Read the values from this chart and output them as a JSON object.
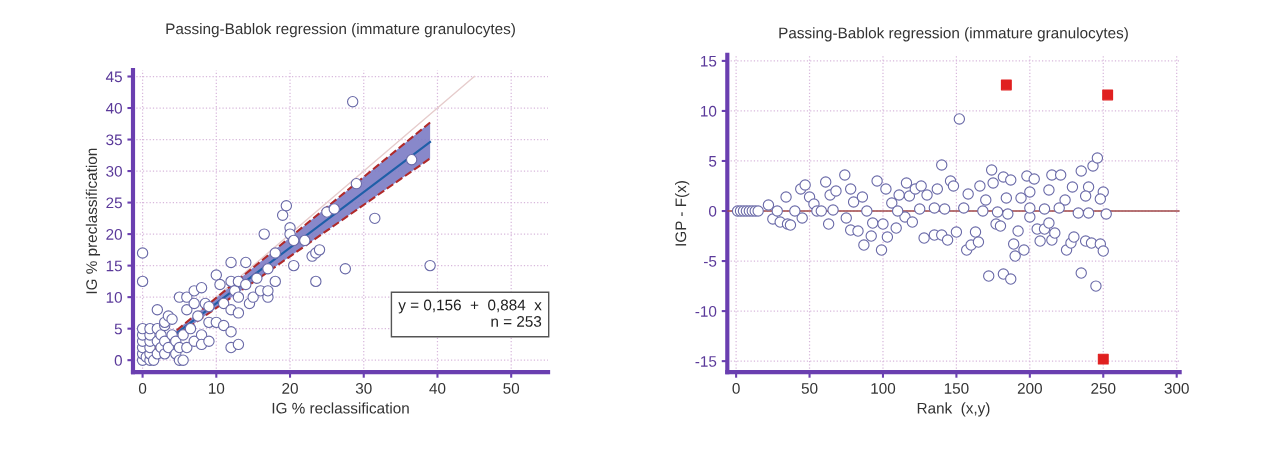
{
  "chart_data": [
    {
      "type": "scatter",
      "title": "Passing-Bablok regression (immature granulocytes)",
      "xlabel": "IG % reclassification",
      "ylabel": "IG % preclassification",
      "xlim": [
        -1.3,
        55
      ],
      "ylim": [
        -1.9,
        46
      ],
      "xticks": [
        0,
        10,
        20,
        30,
        40,
        50
      ],
      "yticks": [
        0,
        5,
        10,
        15,
        20,
        25,
        30,
        35,
        40,
        45
      ],
      "grid": true,
      "series": [
        {
          "marker": "circle",
          "color": "#6a6aa8",
          "x": [
            0,
            0,
            0,
            0,
            0,
            0,
            0,
            0,
            0.5,
            1,
            1,
            1,
            1,
            1,
            1,
            1.5,
            2,
            2,
            2,
            2,
            2.5,
            2.5,
            3,
            3,
            3,
            3,
            3.5,
            3.5,
            4,
            4,
            4.5,
            4.5,
            5,
            5,
            5,
            5.5,
            5.5,
            6,
            6,
            6,
            6.5,
            7,
            7,
            7,
            7.5,
            8,
            8,
            8,
            8.5,
            9,
            9,
            9,
            10,
            10,
            10.5,
            11,
            11,
            12,
            12,
            12,
            12,
            12,
            12.5,
            13,
            13,
            13,
            13,
            14,
            14,
            14.5,
            15,
            15.5,
            16,
            17,
            17,
            17,
            16.5,
            18,
            18,
            19,
            19.5,
            20,
            20,
            20.5,
            20.5,
            22,
            23,
            23.5,
            24,
            23.5,
            25,
            26,
            27.5,
            29,
            28.5,
            31.5,
            36.5,
            39
          ],
          "values": [
            0,
            1,
            2,
            3,
            4,
            5,
            12.5,
            17,
            0.5,
            0,
            1,
            2,
            3,
            4,
            5,
            0,
            1,
            3,
            5,
            8,
            2,
            4,
            1,
            3,
            5.5,
            6,
            2,
            7,
            4,
            6.5,
            3,
            1,
            0,
            10,
            2,
            0,
            4,
            8,
            10,
            2,
            5,
            11,
            3,
            9,
            7,
            11.5,
            4,
            2.5,
            9,
            6,
            3,
            8.5,
            13.5,
            6,
            12,
            5.5,
            9,
            15.5,
            12.5,
            8,
            4.5,
            2,
            11,
            12.5,
            10,
            7.5,
            2.5,
            15.5,
            12,
            9,
            10,
            13,
            11,
            10,
            11,
            14.5,
            20,
            17,
            12.5,
            23,
            24.5,
            21,
            20,
            19,
            15,
            19,
            16.5,
            17,
            17.5,
            12.5,
            23.5,
            24,
            14.5,
            28,
            41,
            22.5,
            31.8,
            15
          ]
        },
        {
          "type": "line",
          "color": "#e6cccc",
          "x": [
            0,
            45
          ],
          "values": [
            0,
            45
          ]
        },
        {
          "type": "line",
          "color": "#1f5fa8",
          "x": [
            0,
            39
          ],
          "values": [
            0.2,
            34.6
          ],
          "lower": [
            0.1,
            32.0
          ],
          "upper": [
            0.3,
            37.7
          ]
        },
        {
          "type": "line",
          "line_style": "dashed",
          "color": "#b02a2a",
          "x": [
            0,
            39
          ],
          "values": [
            0.1,
            32.0
          ]
        },
        {
          "type": "line",
          "line_style": "dashed",
          "color": "#b02a2a",
          "x": [
            0,
            39
          ],
          "values": [
            0.3,
            37.7
          ]
        }
      ],
      "annotations": [
        "y = 0,156  +  0,884  x",
        "n = 253"
      ]
    },
    {
      "type": "scatter",
      "title": "Passing-Bablok regression (immature granulocytes)",
      "xlabel": "Rank  (x,y)",
      "ylabel": "IGP - F(x)",
      "xlim": [
        -6,
        302
      ],
      "ylim": [
        -16.1,
        15.6
      ],
      "xticks": [
        0,
        50,
        100,
        150,
        200,
        250,
        300
      ],
      "yticks": [
        -15,
        -10,
        -5,
        0,
        5,
        10,
        15
      ],
      "grid": true,
      "ref_lines": [
        {
          "axis": "y",
          "value": 0,
          "color": "#a04848"
        }
      ],
      "series": [
        {
          "marker": "circle",
          "color": "#6a6aa8",
          "x": [
            22,
            34,
            44,
            47,
            50,
            53,
            61,
            64,
            68,
            74,
            78,
            80,
            86,
            96,
            102,
            106,
            111,
            116,
            118,
            122,
            126,
            130,
            137,
            140,
            146,
            148,
            152,
            158,
            166,
            170,
            174,
            175,
            182,
            184,
            187,
            194,
            198,
            200,
            203,
            213,
            215,
            221,
            224,
            229,
            235,
            240,
            243,
            246,
            250,
            248,
            238,
            25,
            30,
            35,
            37,
            45,
            63,
            75,
            78,
            83,
            87,
            92,
            93,
            99,
            100,
            103,
            109,
            115,
            120,
            128,
            135,
            140,
            144,
            150,
            157,
            160,
            163,
            165,
            172,
            177,
            180,
            182,
            187,
            189,
            190,
            192,
            196,
            200,
            205,
            207,
            210,
            213,
            215,
            217,
            225,
            228,
            230,
            235,
            238,
            242,
            245,
            248,
            250,
            252,
            1,
            3,
            5,
            7,
            9,
            11,
            13,
            15,
            28,
            40,
            55,
            58,
            66,
            89,
            110,
            125,
            135,
            142,
            155,
            168,
            178,
            185,
            200,
            210,
            220,
            233,
            240
          ],
          "values": [
            0.6,
            1.4,
            2.2,
            2.6,
            1.4,
            0.7,
            2.9,
            1.6,
            2,
            3.6,
            2.2,
            0.9,
            1.4,
            3,
            2.2,
            0.8,
            1.6,
            2.8,
            1.5,
            2.2,
            2.5,
            1.6,
            2.2,
            4.6,
            3,
            2.5,
            9.2,
            1.7,
            2.5,
            1.1,
            4.1,
            2.8,
            3.4,
            1.3,
            3.1,
            1.3,
            3.5,
            1.9,
            3.2,
            2.1,
            3.6,
            3.6,
            1.1,
            2.4,
            4,
            2.4,
            4.5,
            5.3,
            1.9,
            1.2,
            1.5,
            -0.8,
            -1.1,
            -1.3,
            -1.4,
            -0.7,
            -1.3,
            -0.7,
            -1.9,
            -2,
            -3.4,
            -2.5,
            -1.2,
            -3.9,
            -1.3,
            -2.6,
            -1.7,
            -0.6,
            -1.1,
            -2.7,
            -2.4,
            -2.4,
            -2.9,
            -2.1,
            -3.9,
            -3.4,
            -2.1,
            -3.1,
            -6.5,
            -1.3,
            -1.5,
            -6.3,
            -6.8,
            -3.3,
            -4.5,
            -2,
            -3.9,
            -0.6,
            -1.8,
            -3,
            -1.8,
            -1.2,
            -2.9,
            -2.2,
            -3.9,
            -3.2,
            -2.6,
            -6.2,
            -3,
            -3.2,
            -7.5,
            -3.3,
            -4,
            -0.3,
            0,
            0,
            0,
            0,
            0,
            0,
            0,
            0,
            0,
            0,
            0,
            0,
            0.1,
            0,
            0,
            0.2,
            0.3,
            0.2,
            0.3,
            0,
            -0.1,
            -0.3,
            0.3,
            0.2,
            0.3,
            -0.2,
            -0.2
          ]
        },
        {
          "marker": "square",
          "color": "#e02020",
          "x": [
            184,
            253,
            250
          ],
          "values": [
            12.6,
            11.6,
            -14.8
          ]
        }
      ]
    }
  ]
}
